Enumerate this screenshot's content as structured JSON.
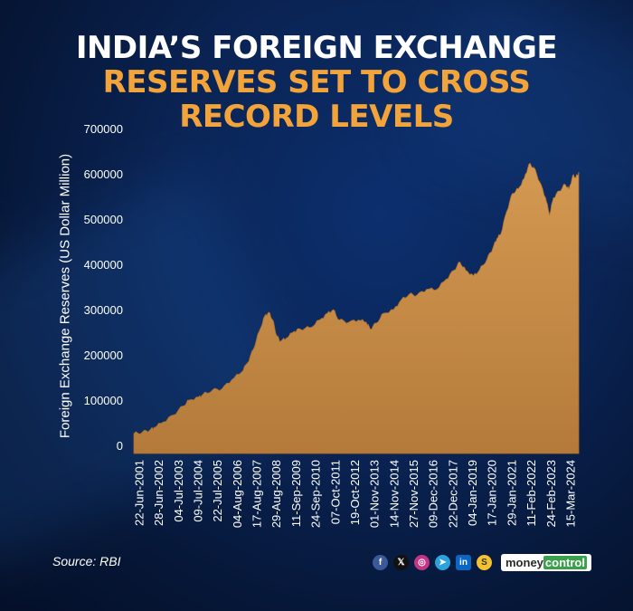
{
  "header": {
    "title_line1": "INDIA’S FOREIGN EXCHANGE",
    "title_line2": "RESERVES SET TO CROSS",
    "title_line3": "RECORD LEVELS"
  },
  "footer": {
    "source": "Source: RBI",
    "brand_part1": "money",
    "brand_part2": "control",
    "social_icons": [
      "facebook-icon",
      "x-icon",
      "instagram-icon",
      "telegram-icon",
      "linkedin-icon",
      "sharechat-icon"
    ]
  },
  "colors": {
    "title_white": "#ffffff",
    "title_orange": "#f2a33a",
    "area_fill": "#c58a45",
    "background": "#0a2455"
  },
  "chart_data": {
    "type": "area",
    "title": "INDIA’S FOREIGN EXCHANGE RESERVES SET TO CROSS RECORD LEVELS",
    "xlabel": "",
    "ylabel": "Foreign Exchange Reserves (US Dollar Million)",
    "ylim": [
      0,
      700000
    ],
    "yticks": [
      0,
      100000,
      200000,
      300000,
      400000,
      500000,
      600000,
      700000
    ],
    "ytick_labels": [
      "0",
      "100000",
      "200000",
      "300000",
      "400000",
      "500000",
      "600000",
      "700000"
    ],
    "x_tick_labels": [
      "22-Jun-2001",
      "28-Jun-2002",
      "04-Jul-2003",
      "09-Jul-2004",
      "22-Jul-2005",
      "04-Aug-2006",
      "17-Aug-2007",
      "29-Aug-2008",
      "11-Sep-2009",
      "24-Sep-2010",
      "07-Oct-2011",
      "19-Oct-2012",
      "01-Nov-2013",
      "14-Nov-2014",
      "27-Nov-2015",
      "09-Dec-2016",
      "22-Dec-2017",
      "04-Jan-2019",
      "17-Jan-2020",
      "29-Jan-2021",
      "11-Feb-2022",
      "24-Feb-2023",
      "15-Mar-2024"
    ],
    "x_start_year": 2001.47,
    "x_end_year": 2024.3,
    "grid": false,
    "series": [
      {
        "name": "Foreign Exchange Reserves",
        "points": [
          [
            2001.47,
            44000
          ],
          [
            2001.9,
            47000
          ],
          [
            2002.3,
            52000
          ],
          [
            2002.5,
            57000
          ],
          [
            2003.0,
            70000
          ],
          [
            2003.5,
            85000
          ],
          [
            2004.0,
            105000
          ],
          [
            2004.3,
            118000
          ],
          [
            2004.8,
            125000
          ],
          [
            2005.0,
            130000
          ],
          [
            2005.5,
            140000
          ],
          [
            2006.0,
            143000
          ],
          [
            2006.5,
            163000
          ],
          [
            2007.0,
            180000
          ],
          [
            2007.3,
            200000
          ],
          [
            2007.6,
            230000
          ],
          [
            2007.9,
            270000
          ],
          [
            2008.2,
            305000
          ],
          [
            2008.4,
            312000
          ],
          [
            2008.6,
            295000
          ],
          [
            2008.8,
            260000
          ],
          [
            2009.0,
            248000
          ],
          [
            2009.3,
            255000
          ],
          [
            2009.7,
            270000
          ],
          [
            2010.0,
            275000
          ],
          [
            2010.5,
            278000
          ],
          [
            2011.0,
            295000
          ],
          [
            2011.4,
            310000
          ],
          [
            2011.7,
            318000
          ],
          [
            2012.0,
            295000
          ],
          [
            2012.5,
            290000
          ],
          [
            2013.0,
            295000
          ],
          [
            2013.4,
            290000
          ],
          [
            2013.6,
            275000
          ],
          [
            2013.9,
            288000
          ],
          [
            2014.3,
            310000
          ],
          [
            2014.8,
            318000
          ],
          [
            2015.2,
            340000
          ],
          [
            2015.6,
            352000
          ],
          [
            2016.0,
            350000
          ],
          [
            2016.5,
            363000
          ],
          [
            2017.0,
            362000
          ],
          [
            2017.5,
            385000
          ],
          [
            2017.9,
            405000
          ],
          [
            2018.2,
            423000
          ],
          [
            2018.5,
            405000
          ],
          [
            2018.9,
            393000
          ],
          [
            2019.2,
            405000
          ],
          [
            2019.6,
            430000
          ],
          [
            2019.9,
            455000
          ],
          [
            2020.1,
            475000
          ],
          [
            2020.3,
            485000
          ],
          [
            2020.6,
            535000
          ],
          [
            2020.9,
            575000
          ],
          [
            2021.2,
            585000
          ],
          [
            2021.5,
            608000
          ],
          [
            2021.75,
            640000
          ],
          [
            2022.0,
            632000
          ],
          [
            2022.3,
            600000
          ],
          [
            2022.6,
            565000
          ],
          [
            2022.8,
            528000
          ],
          [
            2023.0,
            565000
          ],
          [
            2023.3,
            580000
          ],
          [
            2023.6,
            595000
          ],
          [
            2023.8,
            585000
          ],
          [
            2024.0,
            615000
          ],
          [
            2024.15,
            610000
          ],
          [
            2024.3,
            622000
          ]
        ]
      }
    ]
  }
}
